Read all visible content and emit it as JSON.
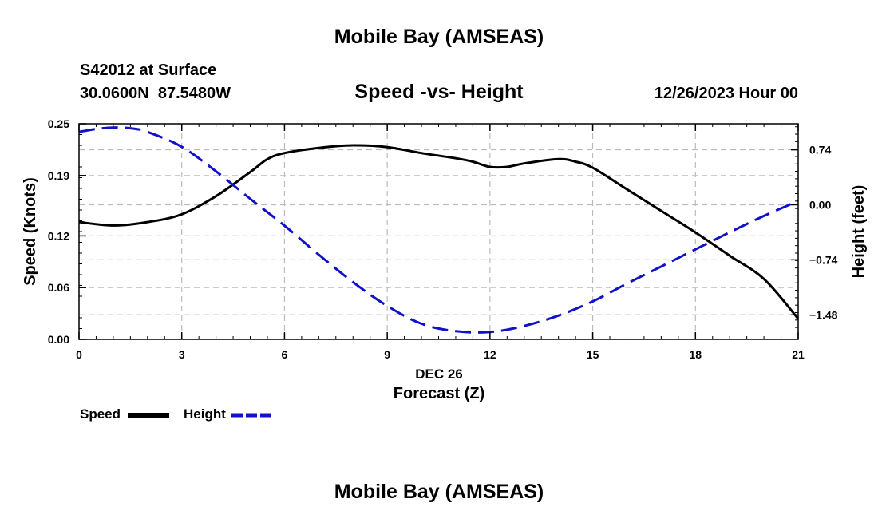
{
  "header": {
    "title_top": "Mobile Bay (AMSEAS)",
    "station": "S42012 at Surface",
    "coords": "30.0600N  87.5480W",
    "datetime": "12/26/2023 Hour 00",
    "title_bottom": "Mobile Bay (AMSEAS)"
  },
  "chart_data": {
    "type": "line",
    "title": "Speed -vs- Height",
    "xlabel_date": "DEC 26",
    "xlabel": "Forecast (Z)",
    "ylabel_left": "Speed (Knots)",
    "ylabel_right": "Height (feet)",
    "xlim": [
      0,
      21
    ],
    "ylim_left": [
      0,
      0.25
    ],
    "ylim_right": [
      -1.81,
      1.09
    ],
    "x_ticks": [
      0,
      3,
      6,
      9,
      12,
      15,
      18,
      21
    ],
    "x_tick_labels": [
      "0",
      "3",
      "6",
      "9",
      "12",
      "15",
      "18",
      "21"
    ],
    "y_left_ticks": [
      0.0,
      0.06,
      0.12,
      0.19,
      0.25
    ],
    "y_left_tick_labels": [
      "0.00",
      "0.06",
      "0.12",
      "0.19",
      "0.25"
    ],
    "y_right_ticks": [
      0.74,
      0.0,
      -0.74,
      -1.48
    ],
    "y_right_tick_labels": [
      "0.74",
      "0.00",
      "−0.74",
      "−1.48"
    ],
    "grid": true,
    "legend": [
      {
        "name": "Speed",
        "color": "#000000",
        "style": "solid"
      },
      {
        "name": "Height",
        "color": "#1111cc",
        "style": "dashed"
      }
    ],
    "series": [
      {
        "name": "Speed",
        "axis": "left",
        "color": "#000000",
        "x": [
          0,
          1,
          2,
          3,
          4,
          5,
          5.5,
          6,
          7,
          8,
          9,
          10,
          11,
          11.5,
          12,
          12.5,
          13,
          14,
          14.5,
          15,
          16,
          17,
          18,
          19,
          20,
          21
        ],
        "values": [
          0.136,
          0.132,
          0.136,
          0.145,
          0.166,
          0.194,
          0.209,
          0.216,
          0.222,
          0.225,
          0.223,
          0.216,
          0.21,
          0.206,
          0.2,
          0.2,
          0.204,
          0.209,
          0.206,
          0.199,
          0.174,
          0.149,
          0.124,
          0.097,
          0.07,
          0.024
        ]
      },
      {
        "name": "Height",
        "axis": "right",
        "color": "#1111cc",
        "x": [
          0,
          0.5,
          1,
          1.5,
          2,
          3,
          4,
          5,
          6,
          7,
          8,
          9,
          10,
          11,
          12,
          13,
          14,
          15,
          16,
          17,
          18,
          19,
          20,
          21
        ],
        "values": [
          0.98,
          1.02,
          1.04,
          1.03,
          0.98,
          0.78,
          0.45,
          0.08,
          -0.28,
          -0.67,
          -1.04,
          -1.36,
          -1.6,
          -1.7,
          -1.71,
          -1.63,
          -1.49,
          -1.3,
          -1.06,
          -0.83,
          -0.6,
          -0.37,
          -0.15,
          0.05
        ]
      }
    ]
  }
}
